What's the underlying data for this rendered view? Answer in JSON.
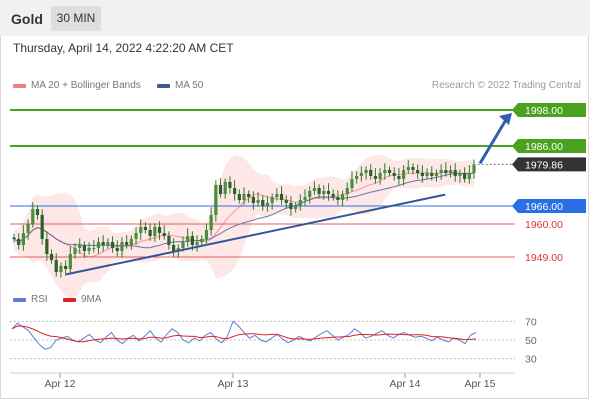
{
  "header": {
    "symbol": "Gold",
    "interval": "30 MIN",
    "datetime": "Thursday, April 14, 2022 4:22:20 AM CET",
    "credit": "Research © 2022 Trading Central"
  },
  "legend": {
    "bollinger": "MA 20 + Bollinger Bands",
    "ma50": "MA 50",
    "rsi": "RSI",
    "rsi_ma": "9MA"
  },
  "colors": {
    "resistance": "#4aa21e",
    "support": "#2b6fe6",
    "support_minor": "#e06060",
    "current": "#333333",
    "bollinger": "#f08080",
    "ma50": "#3b5a9a",
    "rsi": "#5b7fd6",
    "rsi_ma": "#dd2222",
    "candle": "#2f7a2f"
  },
  "chart_data": {
    "type": "candlestick",
    "price_axis": {
      "min": 1938,
      "max": 2003
    },
    "x_labels": [
      "Apr 12",
      "Apr 13",
      "Apr 14",
      "Apr 15"
    ],
    "levels": [
      {
        "value": 1998.0,
        "label": "1998.00",
        "kind": "resistance"
      },
      {
        "value": 1986.0,
        "label": "1986.00",
        "kind": "resistance"
      },
      {
        "value": 1979.86,
        "label": "1979.86",
        "kind": "current"
      },
      {
        "value": 1966.0,
        "label": "1966.00",
        "kind": "support"
      },
      {
        "value": 1960.0,
        "label": "1960.00",
        "kind": "support_minor"
      },
      {
        "value": 1949.0,
        "label": "1949.00",
        "kind": "support_minor"
      }
    ],
    "trendline": {
      "from": [
        0.12,
        1943.2
      ],
      "to": [
        0.93,
        1969.8
      ]
    },
    "arrow": {
      "from": 1979.86,
      "to": 1998.0
    },
    "closes": [
      1955,
      1953,
      1957,
      1960,
      1965,
      1963,
      1955,
      1950,
      1948,
      1944,
      1946,
      1945,
      1950,
      1952,
      1953,
      1951,
      1952,
      1952,
      1954,
      1953,
      1954,
      1952,
      1951,
      1954,
      1953,
      1955,
      1957,
      1959,
      1958,
      1956,
      1959,
      1957,
      1956,
      1953,
      1951,
      1952,
      1954,
      1956,
      1953,
      1954,
      1955,
      1958,
      1963,
      1973,
      1970,
      1974,
      1972,
      1970,
      1968,
      1970,
      1969,
      1967,
      1968,
      1966,
      1967,
      1969,
      1970,
      1968,
      1967,
      1965,
      1966,
      1968,
      1969,
      1971,
      1972,
      1970,
      1971,
      1970,
      1969,
      1968,
      1970,
      1972,
      1975,
      1976,
      1977,
      1978,
      1976,
      1975,
      1977,
      1978,
      1977,
      1976,
      1975,
      1978,
      1979,
      1978,
      1977,
      1976,
      1977,
      1976,
      1977,
      1978,
      1977,
      1978,
      1976,
      1977,
      1975,
      1977,
      1979.86
    ],
    "rsi": {
      "levels": [
        70,
        50,
        30
      ],
      "values": [
        62,
        68,
        64,
        60,
        52,
        45,
        40,
        42,
        50,
        52,
        54,
        50,
        48,
        52,
        56,
        50,
        47,
        53,
        58,
        50,
        46,
        52,
        55,
        49,
        54,
        60,
        52,
        48,
        56,
        62,
        58,
        50,
        47,
        52,
        49,
        55,
        58,
        51,
        47,
        54,
        70,
        65,
        58,
        52,
        55,
        50,
        48,
        52,
        56,
        51,
        47,
        50,
        54,
        51,
        49,
        53,
        57,
        60,
        55,
        50,
        53,
        56,
        62,
        58,
        52,
        54,
        57,
        60,
        55,
        52,
        56,
        58,
        55,
        53,
        54,
        52,
        49,
        53,
        50,
        48,
        52,
        50,
        46,
        55,
        58
      ]
    }
  }
}
